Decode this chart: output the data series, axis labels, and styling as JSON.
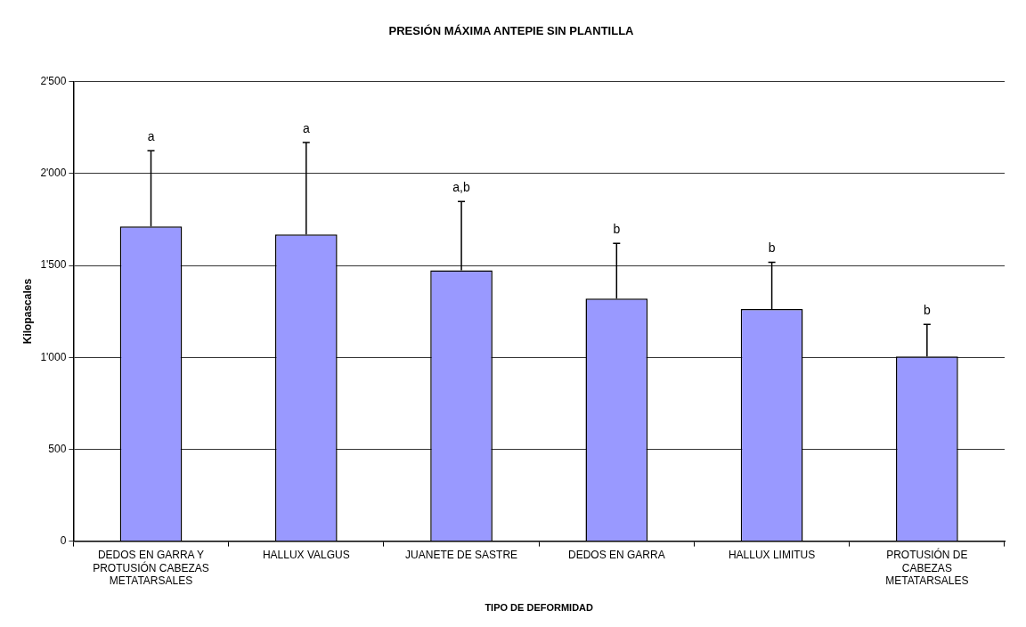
{
  "chart_data": {
    "type": "bar",
    "title": "PRESIÓN MÁXIMA ANTEPIE SIN PLANTILLA",
    "xlabel": "TIPO DE DEFORMIDAD",
    "ylabel": "Kilopascales",
    "categories": [
      "DEDOS EN GARRA Y PROTUSIÓN CABEZAS METATARSALES",
      "HALLUX VALGUS",
      "JUANETE DE SASTRE",
      "DEDOS EN GARRA",
      "HALLUX LIMITUS",
      "PROTUSIÓN DE CABEZAS METATARSALES"
    ],
    "values": [
      1712,
      1668,
      1473,
      1320,
      1263,
      1004
    ],
    "errors": [
      [
        1712,
        2124
      ],
      [
        1668,
        2169
      ],
      [
        1473,
        1848
      ],
      [
        1320,
        1620
      ],
      [
        1263,
        1517
      ],
      [
        1004,
        1179
      ]
    ],
    "color": "#9999ff",
    "ylim": [
      0,
      2500
    ],
    "yticks": [
      0,
      {
        "value": 500,
        "label": "500"
      },
      {
        "value": 1000,
        "label": "1'000"
      },
      {
        "value": 1500,
        "label": "1'500"
      },
      {
        "value": 2000,
        "label": "2'000"
      },
      {
        "value": 2500,
        "label": "2'500"
      }
    ],
    "grid": "y",
    "annotations": [
      {
        "text": "a",
        "x": "DEDOS EN GARRA Y PROTUSIÓN CABEZAS METATARSALES",
        "y": 2124
      },
      {
        "text": "a",
        "x": "HALLUX VALGUS",
        "y": 2169
      },
      {
        "text": "a,b",
        "x": "JUANETE DE SASTRE",
        "y": 1848
      },
      {
        "text": "b",
        "x": "DEDOS EN GARRA",
        "y": 1620
      },
      {
        "text": "b",
        "x": "HALLUX LIMITUS",
        "y": 1517
      },
      {
        "text": "b",
        "x": "PROTUSIÓN DE CABEZAS METATARSALES",
        "y": 1179
      }
    ]
  }
}
